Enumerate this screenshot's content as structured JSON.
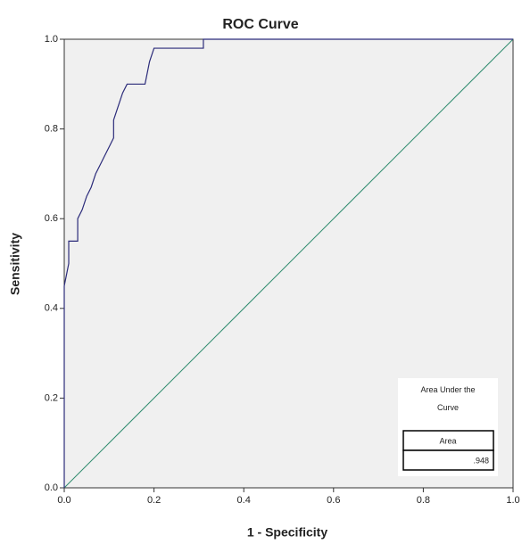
{
  "chart_data": {
    "type": "line",
    "title": "ROC Curve",
    "x_label": "1 - Specificity",
    "y_label": "Sensitivity",
    "series": [
      {
        "color": "#2b2b7a",
        "x": [
          0,
          0,
          0.01,
          0.01,
          0.03,
          0.03,
          0.04,
          0.05,
          0.06,
          0.07,
          0.08,
          0.09,
          0.1,
          0.11,
          0.11,
          0.12,
          0.13,
          0.14,
          0.18,
          0.19,
          0.2,
          0.31,
          0.31,
          1
        ],
        "values": [
          0,
          0.45,
          0.5,
          0.55,
          0.55,
          0.6,
          0.62,
          0.65,
          0.67,
          0.7,
          0.72,
          0.74,
          0.76,
          0.78,
          0.82,
          0.85,
          0.88,
          0.9,
          0.9,
          0.95,
          0.98,
          0.98,
          1,
          1
        ]
      }
    ],
    "xlim": [
      0,
      1
    ],
    "ylim": [
      0,
      1
    ],
    "xticks": [
      {
        "value": 0,
        "label": "0.0"
      },
      0.2,
      0.4,
      0.6,
      0.8,
      {
        "value": 1,
        "label": "1.0"
      }
    ],
    "yticks": [
      {
        "value": 0,
        "label": "0.0"
      },
      0.2,
      0.4,
      0.6,
      0.8,
      {
        "value": 1,
        "label": "1.0"
      }
    ],
    "auc_table": {
      "title": "Area Under the Curve",
      "column": "Area",
      "value": 0.948,
      "value_label": ".948"
    }
  }
}
